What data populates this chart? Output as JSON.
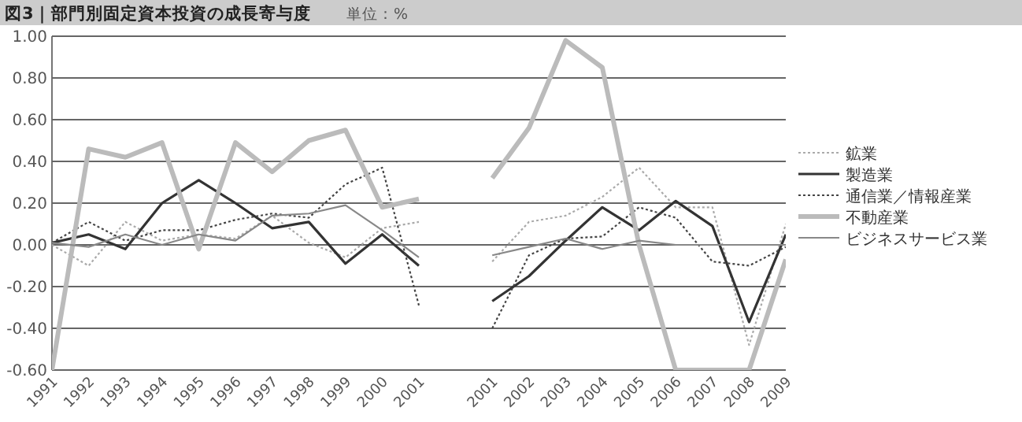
{
  "chart_data": {
    "type": "line",
    "title": "図3｜部門別固定資本投資の成長寄与度",
    "subtitle": "単位：%",
    "categories": [
      "1991",
      "1992",
      "1993",
      "1994",
      "1995",
      "1996",
      "1997",
      "1998",
      "1999",
      "2000",
      "2001",
      null,
      "2001",
      "2002",
      "2003",
      "2004",
      "2005",
      "2006",
      "2007",
      "2008",
      "2009"
    ],
    "series": [
      {
        "name": "鉱業",
        "color": "#aaaaaa",
        "line_style": "dotted",
        "values": [
          0.0,
          -0.1,
          0.11,
          0.02,
          0.05,
          0.03,
          0.14,
          0.01,
          -0.06,
          0.08,
          0.11,
          null,
          -0.08,
          0.11,
          0.14,
          0.23,
          0.37,
          0.18,
          0.18,
          -0.48,
          0.1
        ]
      },
      {
        "name": "製造業",
        "color": "#333333",
        "line_style": "solid",
        "values": [
          0.01,
          0.05,
          -0.02,
          0.2,
          0.31,
          0.2,
          0.08,
          0.11,
          -0.09,
          0.05,
          -0.1,
          null,
          -0.27,
          -0.15,
          0.02,
          0.18,
          0.07,
          0.21,
          0.09,
          -0.37,
          0.05
        ]
      },
      {
        "name": "通信業／情報産業",
        "color": "#444444",
        "line_style": "dotted",
        "values": [
          0.01,
          0.11,
          0.02,
          0.07,
          0.07,
          0.12,
          0.15,
          0.13,
          0.29,
          0.37,
          -0.29,
          null,
          -0.4,
          -0.05,
          0.03,
          0.04,
          0.18,
          0.13,
          -0.08,
          -0.1,
          -0.01
        ]
      },
      {
        "name": "不動産業",
        "color": "#bbbbbb",
        "line_style": "solid",
        "values": [
          -0.6,
          0.46,
          0.42,
          0.49,
          -0.02,
          0.49,
          0.35,
          0.5,
          0.55,
          0.18,
          0.22,
          null,
          0.32,
          0.56,
          0.98,
          0.85,
          0.0,
          -0.6,
          -0.6,
          -0.6,
          -0.07
        ]
      },
      {
        "name": "ビジネスサービス業",
        "color": "#888888",
        "line_style": "solid",
        "values": [
          0.01,
          -0.01,
          0.05,
          0.0,
          0.05,
          0.02,
          0.14,
          0.15,
          0.19,
          0.07,
          -0.06,
          null,
          -0.05,
          -0.01,
          0.03,
          -0.02,
          0.02,
          0.0,
          0.0,
          0.0,
          0.0
        ]
      }
    ],
    "ylim": [
      -0.6,
      1.0
    ],
    "yticks": [
      {
        "value": -0.6,
        "label": "-0.60"
      },
      {
        "value": -0.4,
        "label": "-0.40"
      },
      {
        "value": -0.2,
        "label": "-0.20"
      },
      {
        "value": 0,
        "label": "0.00"
      },
      {
        "value": 0.2,
        "label": "0.20"
      },
      {
        "value": 0.4,
        "label": "0.40"
      },
      {
        "value": 0.6,
        "label": "0.60"
      },
      {
        "value": 0.8,
        "label": "0.80"
      },
      {
        "value": 1.0,
        "label": "1.00"
      }
    ],
    "grid": "y",
    "legend": "right"
  }
}
